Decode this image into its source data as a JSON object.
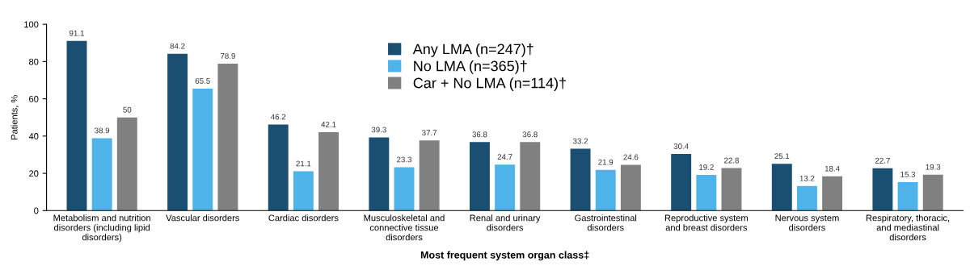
{
  "chart_data": {
    "type": "bar",
    "xlabel": "Most frequent system organ class‡",
    "ylabel": "Patients, %",
    "categories": [
      "Metabolism and nutrition\ndisorders (including lipid\ndisorders)",
      "Vascular disorders",
      "Cardiac disorders",
      "Musculoskeletal and\nconnective tissue\ndisorders",
      "Renal and urinary\ndisorders",
      "Gastrointestinal\ndisorders",
      "Reproductive system\nand breast disorders",
      "Nervous system\ndisorders",
      "Respiratory, thoracic,\nand mediastinal\ndisorders"
    ],
    "series": [
      {
        "name": "Any LMA (n=247)†",
        "color": "#1a4f72",
        "values": [
          91.1,
          84.2,
          46.2,
          39.3,
          36.8,
          33.2,
          30.4,
          25.1,
          22.7
        ]
      },
      {
        "name": "No LMA (n=365)†",
        "color": "#4db3e8",
        "values": [
          38.9,
          65.5,
          21.1,
          23.3,
          24.7,
          21.9,
          19.2,
          13.2,
          15.3
        ]
      },
      {
        "name": "Car + No LMA (n=114)†",
        "color": "#808080",
        "values": [
          50,
          78.9,
          42.1,
          37.7,
          36.8,
          24.6,
          22.8,
          18.4,
          19.3
        ]
      }
    ],
    "ylim": [
      0,
      100
    ],
    "yticks": [
      0,
      20,
      40,
      60,
      80,
      100
    ],
    "data_labels": true,
    "legend": "top",
    "grid": false
  }
}
